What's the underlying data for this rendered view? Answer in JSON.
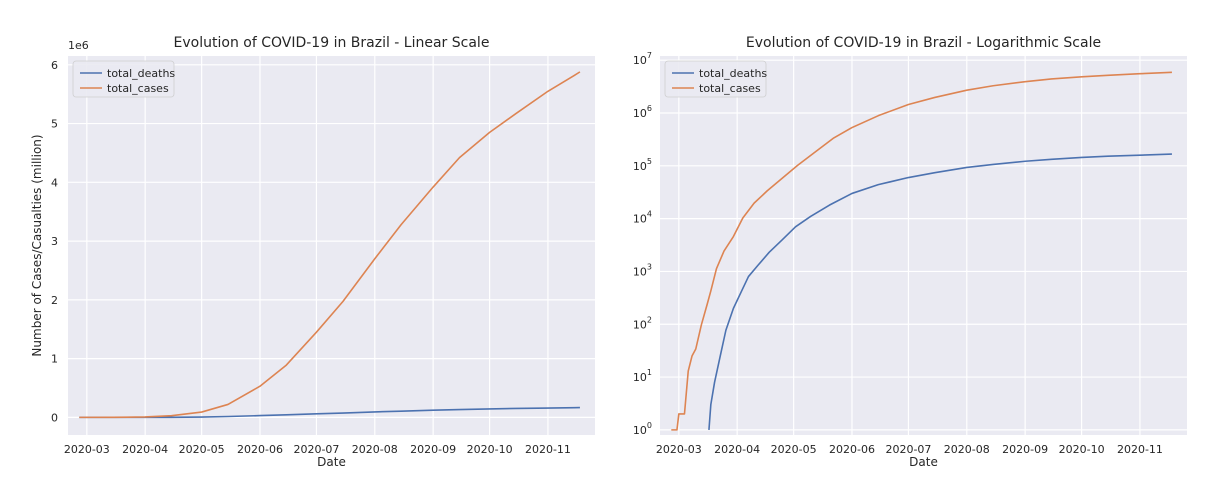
{
  "chart_data": [
    {
      "type": "line",
      "title": "Evolution of COVID-19 in Brazil - Linear Scale",
      "xlabel": "Date",
      "ylabel": "Number of Cases/Casualties (million)",
      "y_offset_label": "1e6",
      "yscale": "linear",
      "xlim": [
        "2020-02-20",
        "2020-11-26"
      ],
      "ylim": [
        -300000,
        6150000
      ],
      "grid": true,
      "legend_position": "top-left",
      "x_ticks": [
        "2020-03",
        "2020-04",
        "2020-05",
        "2020-06",
        "2020-07",
        "2020-08",
        "2020-09",
        "2020-10",
        "2020-11"
      ],
      "y_ticks": [
        "0",
        "1",
        "2",
        "3",
        "4",
        "5",
        "6"
      ],
      "x": [
        "2020-02-26",
        "2020-03-15",
        "2020-04-01",
        "2020-04-15",
        "2020-05-01",
        "2020-05-15",
        "2020-06-01",
        "2020-06-15",
        "2020-07-01",
        "2020-07-15",
        "2020-08-01",
        "2020-08-15",
        "2020-09-01",
        "2020-09-15",
        "2020-10-01",
        "2020-10-15",
        "2020-11-01",
        "2020-11-15",
        "2020-11-18"
      ],
      "series": [
        {
          "name": "total_deaths",
          "color": "#4c72b0",
          "values": [
            0,
            0,
            240,
            1700,
            6000,
            14800,
            30000,
            44000,
            60000,
            74000,
            93000,
            106000,
            122000,
            133000,
            144000,
            152000,
            159000,
            165000,
            167000
          ]
        },
        {
          "name": "total_cases",
          "color": "#dd8452",
          "values": [
            1,
            200,
            6800,
            29000,
            90000,
            220000,
            530000,
            890000,
            1450000,
            1970000,
            2700000,
            3280000,
            3920000,
            4420000,
            4850000,
            5170000,
            5550000,
            5820000,
            5880000
          ]
        }
      ]
    },
    {
      "type": "line",
      "title": "Evolution of COVID-19 in Brazil - Logarithmic Scale",
      "xlabel": "Date",
      "ylabel": "",
      "yscale": "log",
      "xlim": [
        "2020-02-20",
        "2020-11-26"
      ],
      "ylim": [
        0.8,
        12000000
      ],
      "grid": true,
      "legend_position": "top-left",
      "x_ticks": [
        "2020-03",
        "2020-04",
        "2020-05",
        "2020-06",
        "2020-07",
        "2020-08",
        "2020-09",
        "2020-10",
        "2020-11"
      ],
      "y_ticks": [
        {
          "base": "10",
          "exp": "0"
        },
        {
          "base": "10",
          "exp": "1"
        },
        {
          "base": "10",
          "exp": "2"
        },
        {
          "base": "10",
          "exp": "3"
        },
        {
          "base": "10",
          "exp": "4"
        },
        {
          "base": "10",
          "exp": "5"
        },
        {
          "base": "10",
          "exp": "6"
        },
        {
          "base": "10",
          "exp": "7"
        }
      ],
      "series": [
        {
          "name": "total_deaths",
          "color": "#4c72b0",
          "x": [
            "2020-03-17",
            "2020-03-18",
            "2020-03-20",
            "2020-03-23",
            "2020-03-26",
            "2020-03-30",
            "2020-04-03",
            "2020-04-07",
            "2020-04-12",
            "2020-04-18",
            "2020-04-25",
            "2020-05-02",
            "2020-05-10",
            "2020-05-20",
            "2020-06-01",
            "2020-06-15",
            "2020-07-01",
            "2020-07-15",
            "2020-08-01",
            "2020-08-15",
            "2020-09-01",
            "2020-09-15",
            "2020-10-01",
            "2020-10-15",
            "2020-11-01",
            "2020-11-18"
          ],
          "values": [
            1,
            3,
            8,
            25,
            77,
            200,
            400,
            800,
            1300,
            2300,
            4000,
            7000,
            11000,
            18000,
            30000,
            44000,
            60000,
            74000,
            93000,
            106000,
            122000,
            133000,
            144000,
            152000,
            159000,
            167000
          ]
        },
        {
          "name": "total_cases",
          "color": "#dd8452",
          "x": [
            "2020-02-26",
            "2020-02-29",
            "2020-03-01",
            "2020-03-04",
            "2020-03-06",
            "2020-03-08",
            "2020-03-10",
            "2020-03-13",
            "2020-03-16",
            "2020-03-18",
            "2020-03-21",
            "2020-03-25",
            "2020-03-30",
            "2020-04-04",
            "2020-04-10",
            "2020-04-17",
            "2020-04-25",
            "2020-05-03",
            "2020-05-12",
            "2020-05-22",
            "2020-06-01",
            "2020-06-15",
            "2020-07-01",
            "2020-07-15",
            "2020-08-01",
            "2020-08-15",
            "2020-09-01",
            "2020-09-15",
            "2020-10-01",
            "2020-10-15",
            "2020-11-01",
            "2020-11-18"
          ],
          "values": [
            1,
            1,
            2,
            2,
            13,
            25,
            34,
            98,
            234,
            428,
            1128,
            2433,
            4579,
            10278,
            19638,
            33682,
            58509,
            101147,
            177589,
            330890,
            530000,
            890000,
            1450000,
            1970000,
            2700000,
            3280000,
            3920000,
            4420000,
            4850000,
            5170000,
            5550000,
            5880000
          ]
        }
      ]
    }
  ]
}
